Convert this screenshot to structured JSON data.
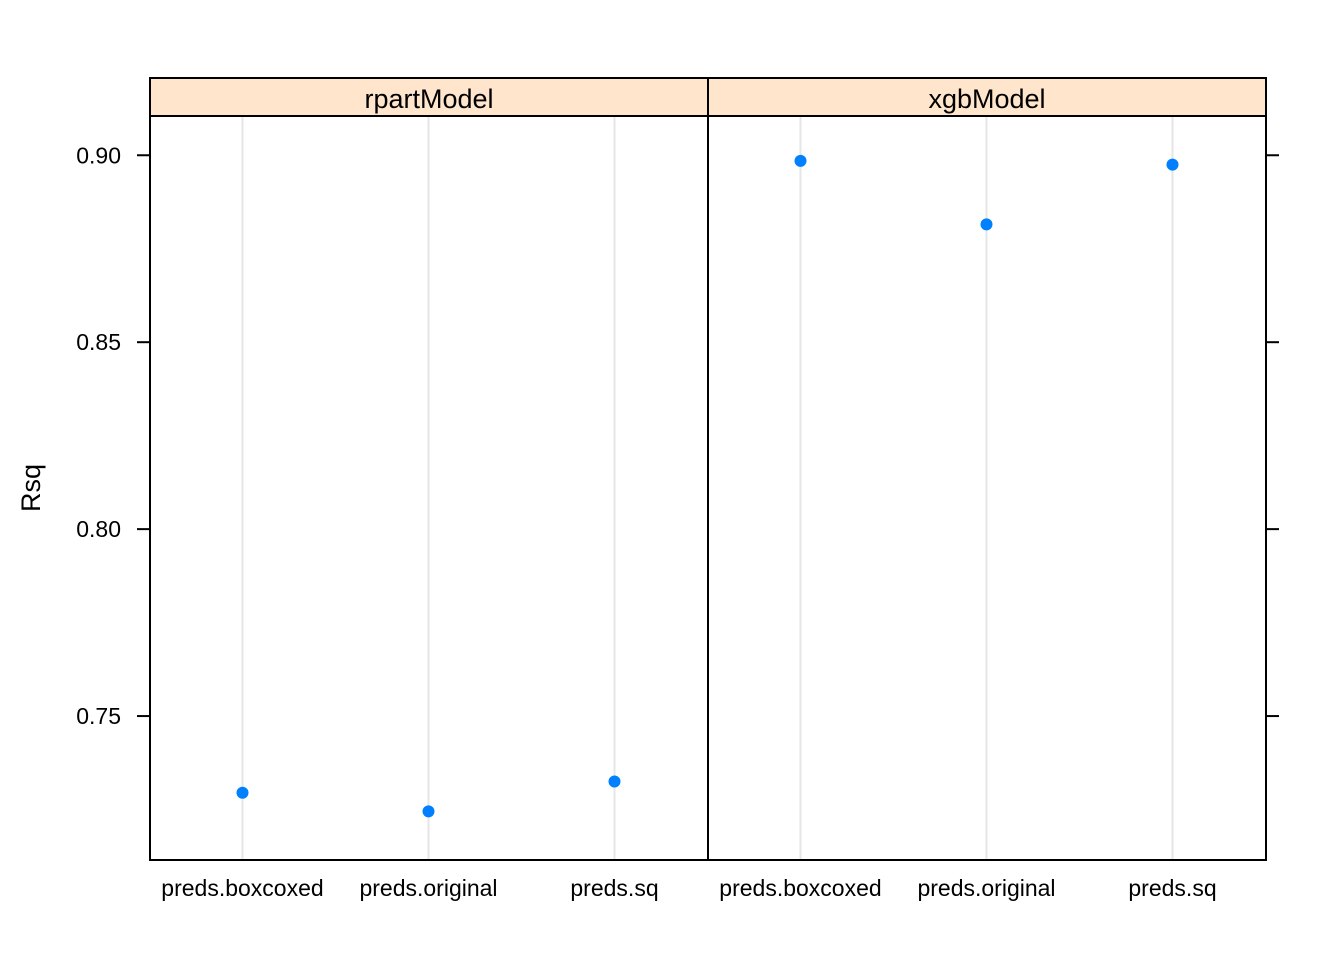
{
  "chart_data": {
    "type": "scatter",
    "ylabel": "Rsq",
    "xlabel": "",
    "ylim": [
      0.7115,
      0.9105
    ],
    "yticks": [
      0.75,
      0.8,
      0.85,
      0.9
    ],
    "ytick_labels": [
      "0.75",
      "0.80",
      "0.85",
      "0.90"
    ],
    "categories": [
      "preds.boxcoxed",
      "preds.original",
      "preds.sq"
    ],
    "grid": "vertical",
    "point_color": "#0080ff",
    "strip_color": "#ffe5cc",
    "gridline_color": "#e6e6e6",
    "panels": [
      {
        "name": "rpartModel",
        "values": [
          0.7295,
          0.7245,
          0.7325
        ]
      },
      {
        "name": "xgbModel",
        "values": [
          0.8985,
          0.8815,
          0.8975
        ]
      }
    ]
  }
}
